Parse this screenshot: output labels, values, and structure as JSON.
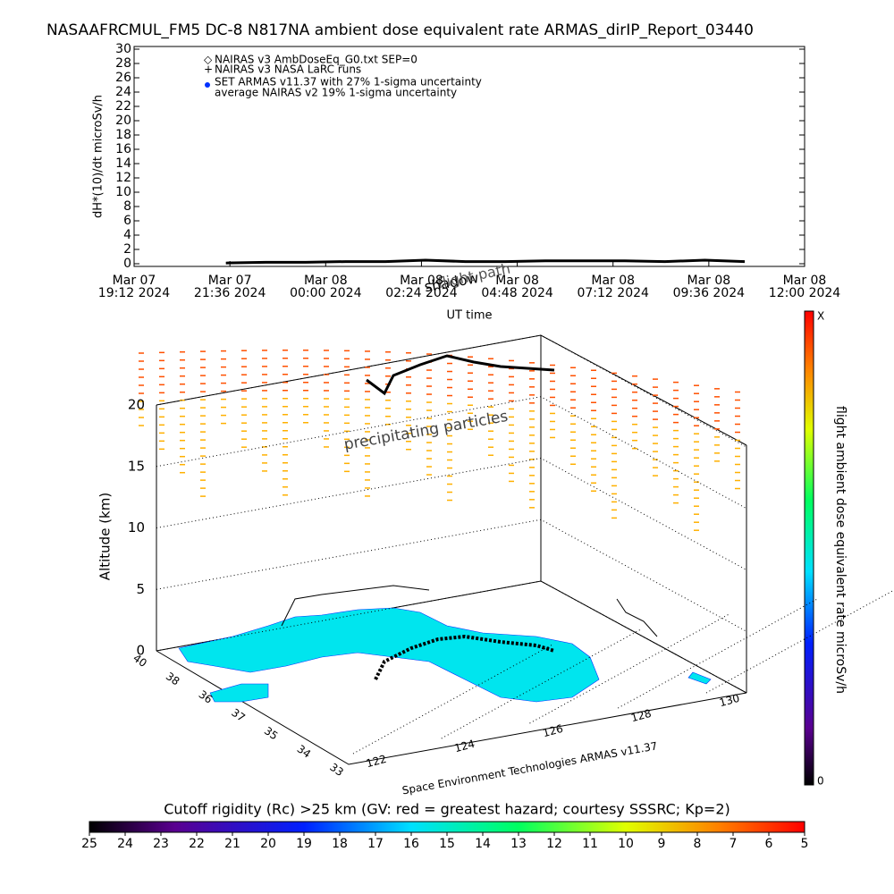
{
  "chart_data": [
    {
      "type": "line",
      "title": "NASAAFRCMUL_FM5 DC-8   N817NA ambient dose equivalent rate ARMAS_dirIP_Report_03440",
      "y_label": "dH*(10)/dt microSv/h",
      "x_label": "UT time",
      "legend": [
        "NAIRAS v3 AmbDoseEq_G0.txt SEP=0",
        "NAIRAS v3 NASA LaRC runs",
        "SET ARMAS v11.37 with 27% 1-sigma uncertainty",
        "average NAIRAS v2 19% 1-sigma uncertainty"
      ],
      "xlim": [
        {
          "date": "Mar 07",
          "time": "19:12 2024"
        },
        {
          "date": "Mar 08",
          "time": "12:00 2024"
        }
      ],
      "xticks": [
        {
          "date": "Mar 07",
          "time": "19:12 2024"
        },
        {
          "date": "Mar 07",
          "time": "21:36 2024"
        },
        {
          "date": "Mar 08",
          "time": "00:00 2024"
        },
        {
          "date": "Mar 08",
          "time": "02:24 2024"
        },
        {
          "date": "Mar 08",
          "time": "04:48 2024"
        },
        {
          "date": "Mar 08",
          "time": "07:12 2024"
        },
        {
          "date": "Mar 08",
          "time": "09:36 2024"
        },
        {
          "date": "Mar 08",
          "time": "12:00 2024"
        }
      ],
      "ylim": [
        0,
        30
      ],
      "yticks": [
        0,
        2,
        4,
        6,
        8,
        10,
        12,
        14,
        16,
        18,
        20,
        22,
        24,
        26,
        28,
        30
      ],
      "series": [
        {
          "color": "#000000",
          "x": [
            "Mar 07 21:30 2024",
            "Mar 07 22:30 2024",
            "Mar 07 23:30 2024",
            "Mar 08 00:30 2024",
            "Mar 08 01:30 2024",
            "Mar 08 02:30 2024",
            "Mar 08 03:30 2024",
            "Mar 08 04:30 2024",
            "Mar 08 05:30 2024",
            "Mar 08 06:30 2024",
            "Mar 08 07:30 2024",
            "Mar 08 08:30 2024",
            "Mar 08 09:30 2024",
            "Mar 08 10:30 2024"
          ],
          "values": [
            0.1,
            0.2,
            0.2,
            0.3,
            0.3,
            0.5,
            0.3,
            0.3,
            0.4,
            0.4,
            0.4,
            0.3,
            0.5,
            0.3
          ]
        }
      ]
    },
    {
      "type": "surface3d",
      "z_label": "Altitude (km)",
      "zlim": [
        0,
        20
      ],
      "zticks": [
        0,
        5,
        10,
        15,
        20
      ],
      "lat_ticks": [
        40,
        38,
        36,
        37,
        35,
        34,
        33
      ],
      "lon_ticks": [
        122,
        124,
        126,
        128,
        130
      ],
      "annotations": [
        "shadow",
        "flight path",
        "precipitating particles",
        "Space Environment Technologies ARMAS v11.37"
      ],
      "colorbar_title": "flight ambient dose equivalent rate microSv/h",
      "colorbar_labels": [
        "X",
        "0"
      ]
    },
    {
      "type": "colorbar",
      "title": "Cutoff rigidity (Rc) >25 km (GV: red = greatest hazard; courtesy SSSRC; Kp=2)",
      "xlim": [
        25,
        5
      ],
      "xticks": [
        25,
        24,
        23,
        22,
        21,
        20,
        19,
        18,
        17,
        16,
        15,
        14,
        13,
        12,
        11,
        10,
        9,
        8,
        7,
        6,
        5
      ]
    }
  ]
}
